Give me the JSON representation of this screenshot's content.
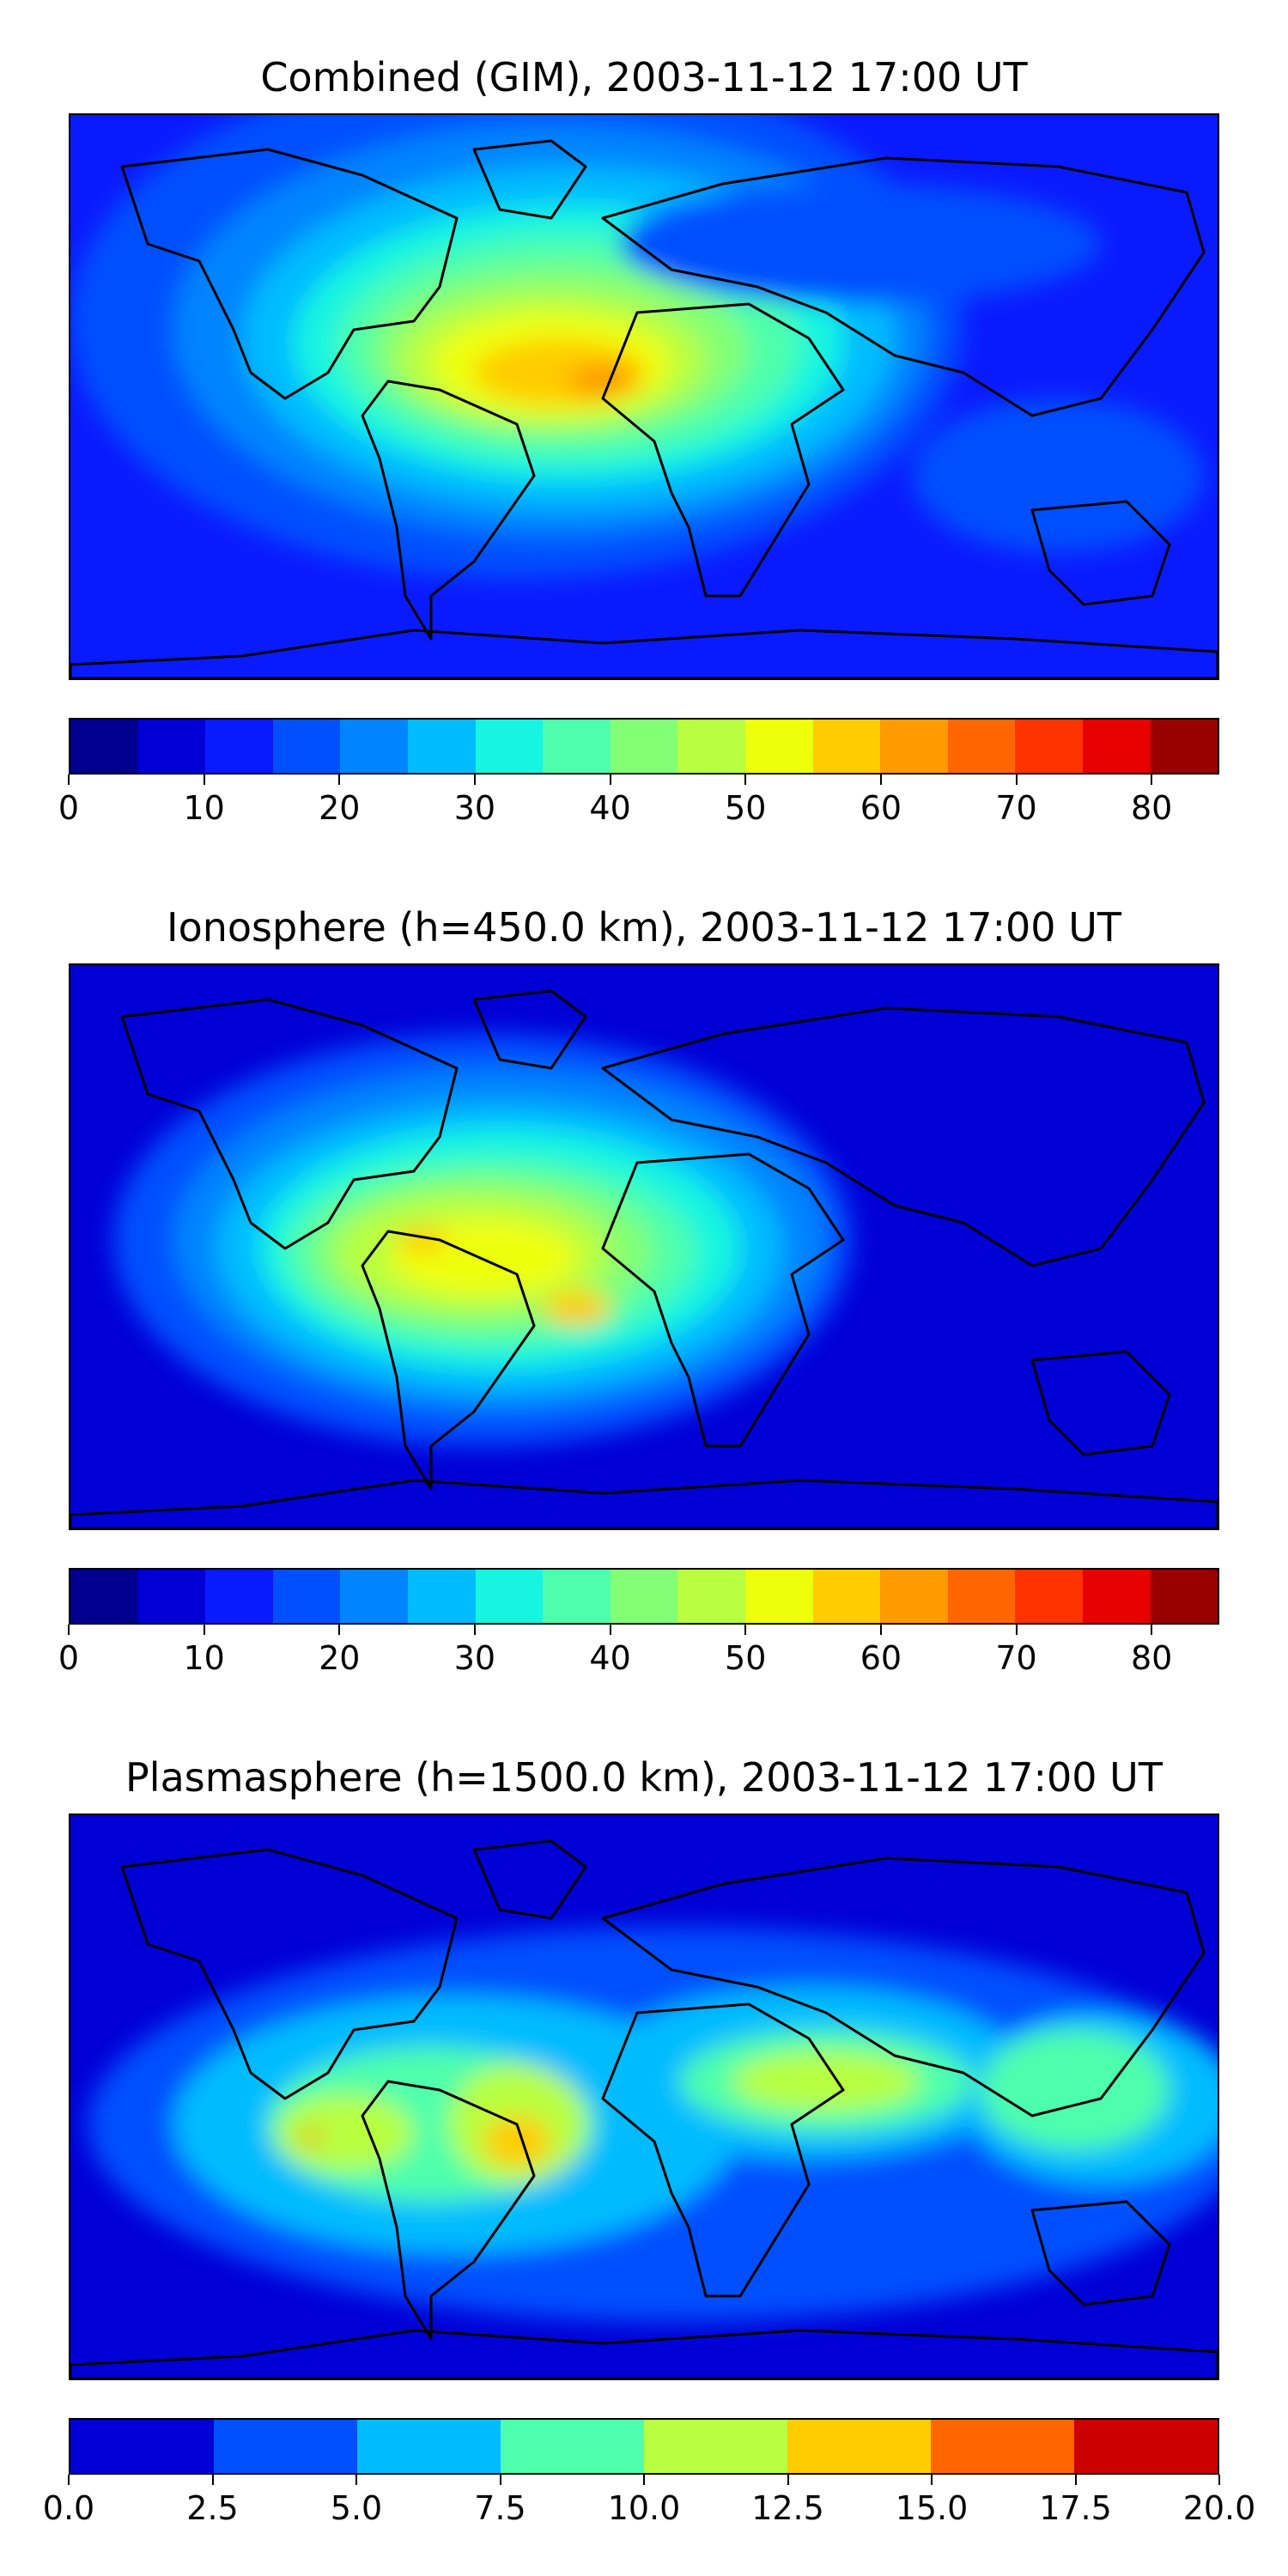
{
  "chart_data": [
    {
      "type": "heatmap",
      "title": "Combined (GIM), 2003-11-12 17:00 UT",
      "colorbar": {
        "levels": [
          0,
          5,
          10,
          15,
          20,
          25,
          30,
          35,
          40,
          45,
          50,
          55,
          60,
          65,
          70,
          75,
          80,
          85
        ],
        "colors": [
          "#00008f",
          "#0000d6",
          "#0a1aff",
          "#0050ff",
          "#0084ff",
          "#00bcff",
          "#17f5e0",
          "#4dffac",
          "#83ff76",
          "#b8ff41",
          "#eeff0b",
          "#ffcc00",
          "#ff9a00",
          "#ff6600",
          "#ff3300",
          "#e60000",
          "#990000"
        ],
        "ticks": [
          "0",
          "10",
          "20",
          "30",
          "40",
          "50",
          "60",
          "70",
          "80"
        ]
      },
      "field": {
        "background_level": 2,
        "peak_region": "South America / South Atlantic / West Africa",
        "max_value_approx": 67
      }
    },
    {
      "type": "heatmap",
      "title": "Ionosphere  (h=450.0 km), 2003-11-12 17:00 UT",
      "colorbar": {
        "levels": [
          0,
          5,
          10,
          15,
          20,
          25,
          30,
          35,
          40,
          45,
          50,
          55,
          60,
          65,
          70,
          75,
          80,
          85
        ],
        "colors": [
          "#00008f",
          "#0000d6",
          "#0a1aff",
          "#0050ff",
          "#0084ff",
          "#00bcff",
          "#17f5e0",
          "#4dffac",
          "#83ff76",
          "#b8ff41",
          "#eeff0b",
          "#ffcc00",
          "#ff9a00",
          "#ff6600",
          "#ff3300",
          "#e60000",
          "#990000"
        ],
        "ticks": [
          "0",
          "10",
          "20",
          "30",
          "40",
          "50",
          "60",
          "70",
          "80"
        ]
      },
      "field": {
        "background_level": 1,
        "peak_region": "South America / South Atlantic",
        "max_value_approx": 57
      }
    },
    {
      "type": "heatmap",
      "title": "Plasmasphere (h=1500.0 km), 2003-11-12 17:00 UT",
      "colorbar": {
        "levels": [
          0,
          2.5,
          5,
          7.5,
          10,
          12.5,
          15,
          17.5,
          20
        ],
        "colors": [
          "#0000d6",
          "#0050ff",
          "#00bcff",
          "#4dffac",
          "#b8ff41",
          "#ffcc00",
          "#ff6600",
          "#cc0000"
        ],
        "ticks": [
          "0.0",
          "2.5",
          "5.0",
          "7.5",
          "10.0",
          "12.5",
          "15.0",
          "17.5",
          "20.0"
        ]
      },
      "field": {
        "background_level": 0,
        "peak_region": "South America, Africa, Southeast Asia bands",
        "max_value_approx": 14
      }
    }
  ]
}
